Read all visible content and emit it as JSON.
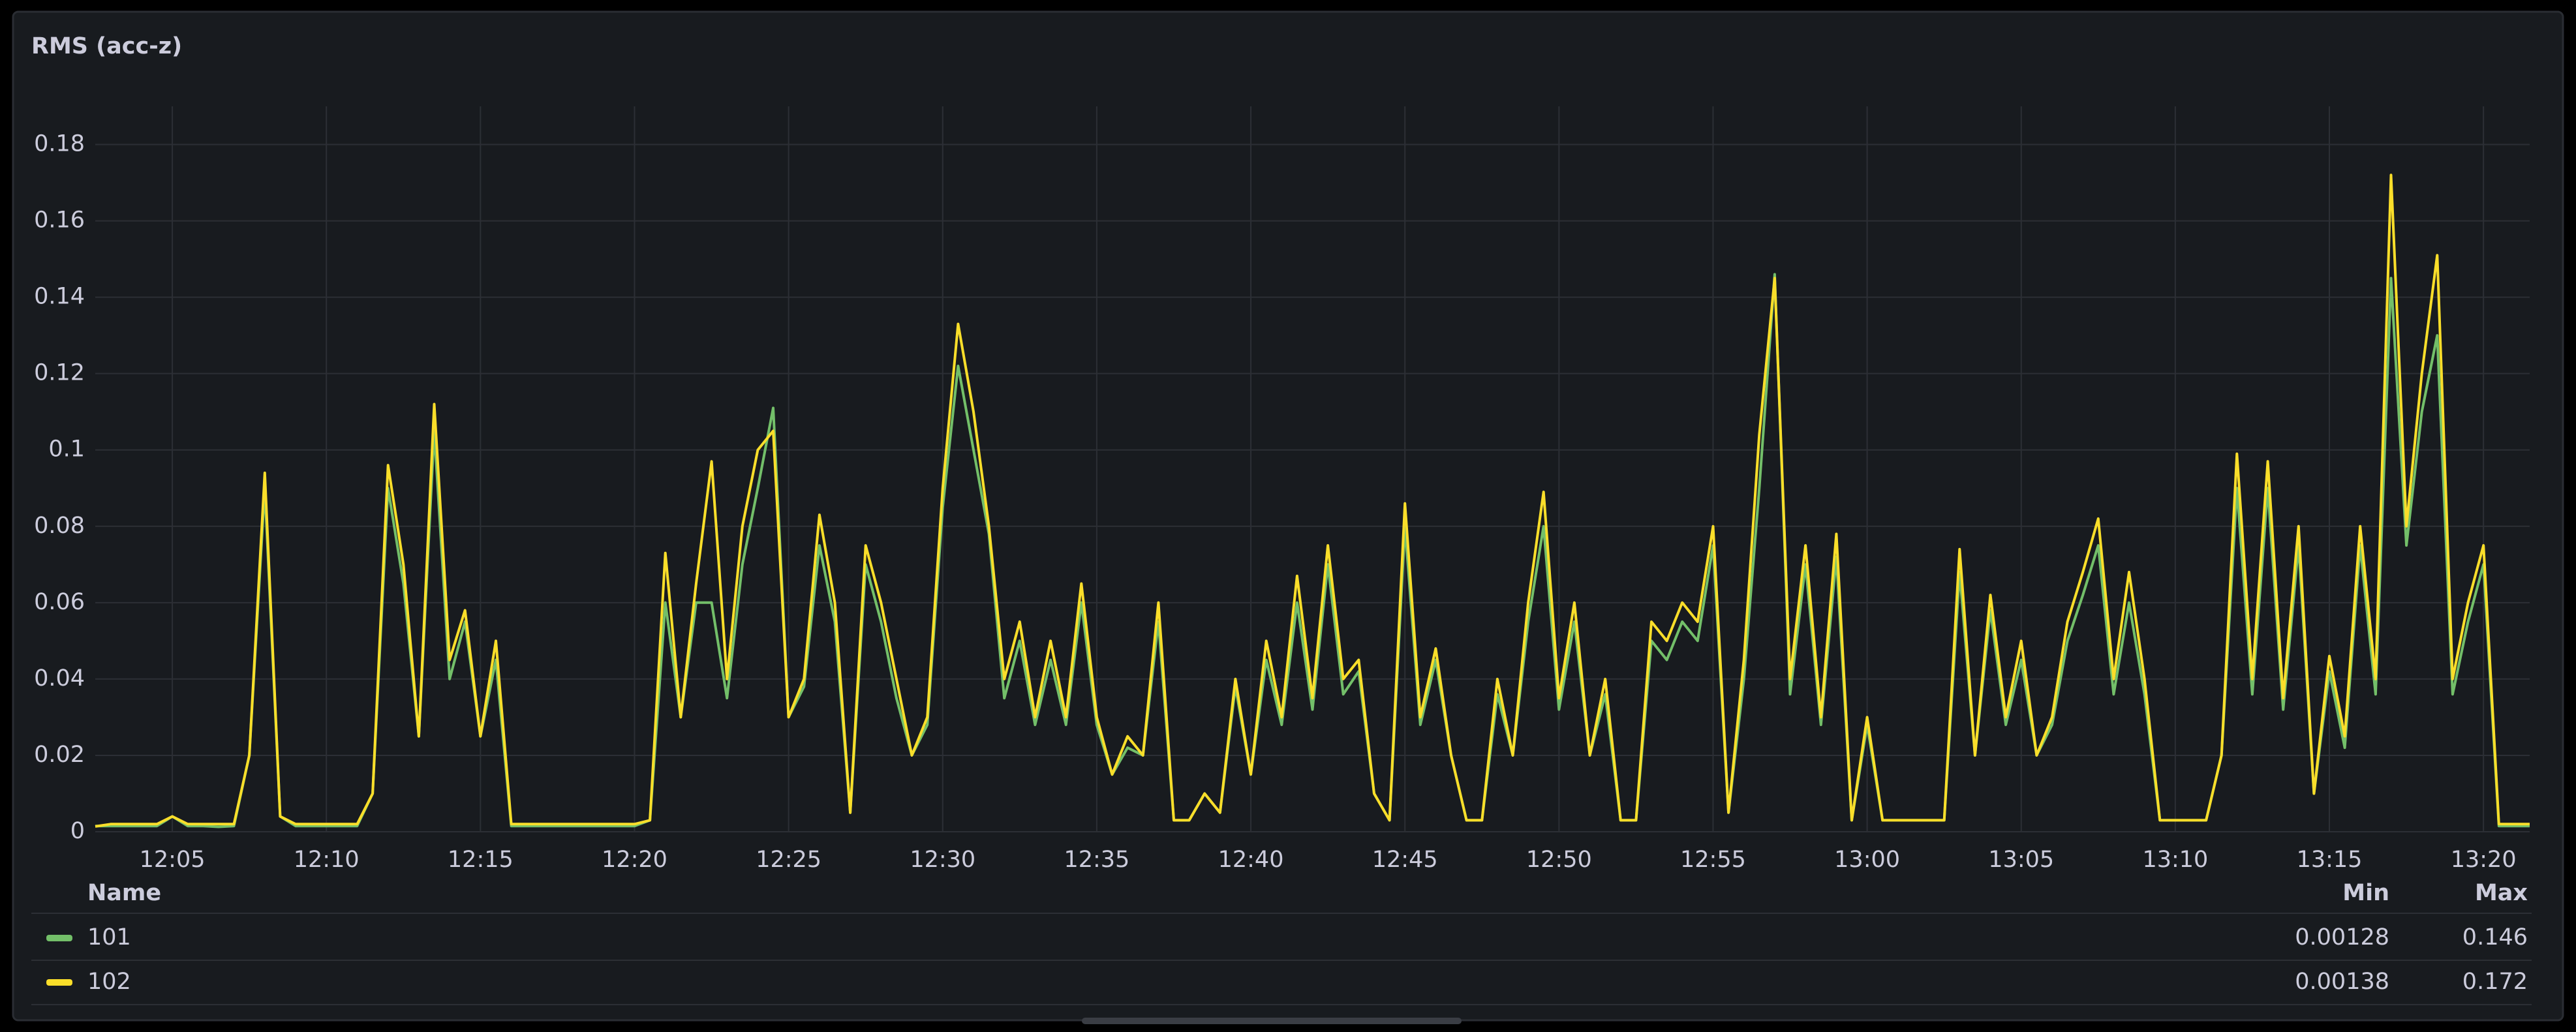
{
  "chart_data": {
    "type": "line",
    "title": "RMS (acc-z)",
    "x": [
      "12:02:30",
      "12:03:00",
      "12:03:30",
      "12:04:00",
      "12:04:30",
      "12:05:00",
      "12:05:30",
      "12:06:00",
      "12:06:30",
      "12:07:00",
      "12:07:30",
      "12:08:00",
      "12:08:30",
      "12:09:00",
      "12:09:30",
      "12:10:00",
      "12:10:30",
      "12:11:00",
      "12:11:30",
      "12:12:00",
      "12:12:30",
      "12:13:00",
      "12:13:30",
      "12:14:00",
      "12:14:30",
      "12:15:00",
      "12:15:30",
      "12:16:00",
      "12:16:30",
      "12:17:00",
      "12:17:30",
      "12:18:00",
      "12:18:30",
      "12:19:00",
      "12:19:30",
      "12:20:00",
      "12:20:30",
      "12:21:00",
      "12:21:30",
      "12:22:00",
      "12:22:30",
      "12:23:00",
      "12:23:30",
      "12:24:00",
      "12:24:30",
      "12:25:00",
      "12:25:30",
      "12:26:00",
      "12:26:30",
      "12:27:00",
      "12:27:30",
      "12:28:00",
      "12:28:30",
      "12:29:00",
      "12:29:30",
      "12:30:00",
      "12:30:30",
      "12:31:00",
      "12:31:30",
      "12:32:00",
      "12:32:30",
      "12:33:00",
      "12:33:30",
      "12:34:00",
      "12:34:30",
      "12:35:00",
      "12:35:30",
      "12:36:00",
      "12:36:30",
      "12:37:00",
      "12:37:30",
      "12:38:00",
      "12:38:30",
      "12:39:00",
      "12:39:30",
      "12:40:00",
      "12:40:30",
      "12:41:00",
      "12:41:30",
      "12:42:00",
      "12:42:30",
      "12:43:00",
      "12:43:30",
      "12:44:00",
      "12:44:30",
      "12:45:00",
      "12:45:30",
      "12:46:00",
      "12:46:30",
      "12:47:00",
      "12:47:30",
      "12:48:00",
      "12:48:30",
      "12:49:00",
      "12:49:30",
      "12:50:00",
      "12:50:30",
      "12:51:00",
      "12:51:30",
      "12:52:00",
      "12:52:30",
      "12:53:00",
      "12:53:30",
      "12:54:00",
      "12:54:30",
      "12:55:00",
      "12:55:30",
      "12:56:00",
      "12:56:30",
      "12:57:00",
      "12:57:30",
      "12:58:00",
      "12:58:30",
      "12:59:00",
      "12:59:30",
      "13:00:00",
      "13:00:30",
      "13:01:00",
      "13:01:30",
      "13:02:00",
      "13:02:30",
      "13:03:00",
      "13:03:30",
      "13:04:00",
      "13:04:30",
      "13:05:00",
      "13:05:30",
      "13:06:00",
      "13:06:30",
      "13:07:00",
      "13:07:30",
      "13:08:00",
      "13:08:30",
      "13:09:00",
      "13:09:30",
      "13:10:00",
      "13:10:30",
      "13:11:00",
      "13:11:30",
      "13:12:00",
      "13:12:30",
      "13:13:00",
      "13:13:30",
      "13:14:00",
      "13:14:30",
      "13:15:00",
      "13:15:30",
      "13:16:00",
      "13:16:30",
      "13:17:00",
      "13:17:30",
      "13:18:00",
      "13:18:30",
      "13:19:00",
      "13:19:30",
      "13:20:00",
      "13:20:30",
      "13:21:00",
      "13:21:30"
    ],
    "series": [
      {
        "name": "101",
        "color": "#73bf69",
        "min": 0.00128,
        "max": 0.146,
        "values": [
          0.0015,
          0.0015,
          0.0015,
          0.0015,
          0.0015,
          0.004,
          0.0015,
          0.0015,
          0.00128,
          0.0015,
          0.02,
          0.09,
          0.004,
          0.0015,
          0.0015,
          0.0015,
          0.0015,
          0.0015,
          0.01,
          0.09,
          0.065,
          0.025,
          0.105,
          0.04,
          0.055,
          0.025,
          0.045,
          0.0015,
          0.0015,
          0.0015,
          0.0015,
          0.0015,
          0.0015,
          0.0015,
          0.0015,
          0.0015,
          0.003,
          0.06,
          0.03,
          0.06,
          0.06,
          0.035,
          0.07,
          0.09,
          0.111,
          0.03,
          0.038,
          0.075,
          0.055,
          0.005,
          0.07,
          0.055,
          0.035,
          0.02,
          0.028,
          0.085,
          0.122,
          0.1,
          0.078,
          0.035,
          0.05,
          0.028,
          0.045,
          0.028,
          0.06,
          0.028,
          0.015,
          0.022,
          0.02,
          0.055,
          0.003,
          0.003,
          0.01,
          0.005,
          0.038,
          0.015,
          0.045,
          0.028,
          0.06,
          0.032,
          0.07,
          0.036,
          0.042,
          0.01,
          0.003,
          0.08,
          0.028,
          0.045,
          0.02,
          0.003,
          0.003,
          0.036,
          0.02,
          0.055,
          0.08,
          0.032,
          0.055,
          0.02,
          0.036,
          0.003,
          0.003,
          0.05,
          0.045,
          0.055,
          0.05,
          0.075,
          0.005,
          0.04,
          0.09,
          0.146,
          0.036,
          0.07,
          0.028,
          0.072,
          0.003,
          0.028,
          0.003,
          0.003,
          0.003,
          0.003,
          0.003,
          0.068,
          0.02,
          0.058,
          0.028,
          0.045,
          0.02,
          0.028,
          0.05,
          0.062,
          0.075,
          0.036,
          0.06,
          0.036,
          0.003,
          0.003,
          0.003,
          0.003,
          0.02,
          0.09,
          0.036,
          0.09,
          0.032,
          0.075,
          0.01,
          0.042,
          0.022,
          0.075,
          0.036,
          0.145,
          0.075,
          0.11,
          0.13,
          0.036,
          0.055,
          0.07,
          0.0015,
          0.0015,
          0.0015
        ]
      },
      {
        "name": "102",
        "color": "#fade2a",
        "min": 0.00138,
        "max": 0.172,
        "values": [
          0.00138,
          0.002,
          0.002,
          0.002,
          0.002,
          0.004,
          0.002,
          0.002,
          0.002,
          0.002,
          0.02,
          0.094,
          0.004,
          0.002,
          0.002,
          0.002,
          0.002,
          0.002,
          0.01,
          0.096,
          0.07,
          0.025,
          0.112,
          0.045,
          0.058,
          0.025,
          0.05,
          0.002,
          0.002,
          0.002,
          0.002,
          0.002,
          0.002,
          0.002,
          0.002,
          0.002,
          0.003,
          0.073,
          0.03,
          0.065,
          0.097,
          0.04,
          0.08,
          0.1,
          0.105,
          0.03,
          0.04,
          0.083,
          0.06,
          0.005,
          0.075,
          0.06,
          0.04,
          0.02,
          0.03,
          0.09,
          0.133,
          0.11,
          0.08,
          0.04,
          0.055,
          0.03,
          0.05,
          0.03,
          0.065,
          0.03,
          0.015,
          0.025,
          0.02,
          0.06,
          0.003,
          0.003,
          0.01,
          0.005,
          0.04,
          0.015,
          0.05,
          0.03,
          0.067,
          0.035,
          0.075,
          0.04,
          0.045,
          0.01,
          0.003,
          0.086,
          0.03,
          0.048,
          0.02,
          0.003,
          0.003,
          0.04,
          0.02,
          0.06,
          0.089,
          0.035,
          0.06,
          0.02,
          0.04,
          0.003,
          0.003,
          0.055,
          0.05,
          0.06,
          0.055,
          0.08,
          0.005,
          0.045,
          0.104,
          0.145,
          0.04,
          0.075,
          0.03,
          0.078,
          0.003,
          0.03,
          0.003,
          0.003,
          0.003,
          0.003,
          0.003,
          0.074,
          0.02,
          0.062,
          0.03,
          0.05,
          0.02,
          0.03,
          0.055,
          0.068,
          0.082,
          0.04,
          0.068,
          0.04,
          0.003,
          0.003,
          0.003,
          0.003,
          0.02,
          0.099,
          0.04,
          0.097,
          0.035,
          0.08,
          0.01,
          0.046,
          0.025,
          0.08,
          0.04,
          0.172,
          0.08,
          0.12,
          0.151,
          0.04,
          0.06,
          0.075,
          0.002,
          0.002,
          0.002
        ]
      }
    ],
    "xlim": [
      "12:02:30",
      "13:21:30"
    ],
    "xticks": [
      "12:05",
      "12:10",
      "12:15",
      "12:20",
      "12:25",
      "12:30",
      "12:35",
      "12:40",
      "12:45",
      "12:50",
      "12:55",
      "13:00",
      "13:05",
      "13:10",
      "13:15",
      "13:20"
    ],
    "ylim": [
      0,
      0.19
    ],
    "yticks": [
      0,
      0.02,
      0.04,
      0.06,
      0.08,
      0.1,
      0.12,
      0.14,
      0.16,
      0.18
    ],
    "grid": true,
    "legend": {
      "columns": [
        "Name",
        "Min",
        "Max"
      ]
    }
  }
}
